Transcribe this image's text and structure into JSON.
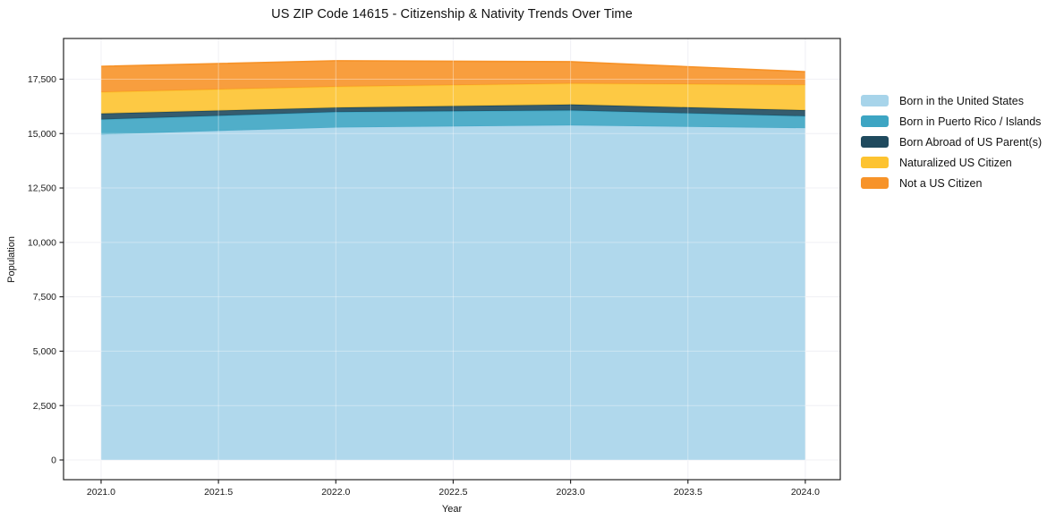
{
  "title": "US ZIP Code 14615 - Citizenship & Nativity Trends Over Time",
  "axes": {
    "xlabel": "Year",
    "ylabel": "Population"
  },
  "chart_data": {
    "type": "area",
    "stacked": true,
    "title": "US ZIP Code 14615 - Citizenship & Nativity Trends Over Time",
    "xlabel": "Year",
    "ylabel": "Population",
    "x": [
      2021,
      2022,
      2023,
      2024
    ],
    "series": [
      {
        "name": "Born in the United States",
        "color": "#a7d4ea",
        "values": [
          14960,
          15280,
          15375,
          15250
        ]
      },
      {
        "name": "Born in Puerto Rico / Islands",
        "color": "#3da5c3",
        "values": [
          690,
          710,
          690,
          550
        ]
      },
      {
        "name": "Born Abroad of US Parent(s)",
        "color": "#1f4a5e",
        "values": [
          270,
          205,
          270,
          275
        ]
      },
      {
        "name": "Naturalized US Citizen",
        "color": "#fdc330",
        "values": [
          985,
          960,
          965,
          1165
        ]
      },
      {
        "name": "Not a US Citizen",
        "color": "#f79329",
        "values": [
          1180,
          1190,
          1000,
          600
        ]
      }
    ],
    "totals_stacked": [
      18085,
      18345,
      18300,
      17840
    ],
    "xlim": [
      2020.84,
      2024.149
    ],
    "ylim": [
      -905,
      19370
    ],
    "x_tick_values": [
      2021.0,
      2021.5,
      2022.0,
      2022.5,
      2023.0,
      2023.5,
      2024.0
    ],
    "x_tick_labels": [
      "2021.0",
      "2021.5",
      "2022.0",
      "2022.5",
      "2023.0",
      "2023.5",
      "2024.0"
    ],
    "y_tick_values": [
      0,
      2500,
      5000,
      7500,
      10000,
      12500,
      15000,
      17500
    ],
    "y_tick_labels": [
      "0",
      "2,500",
      "5,000",
      "7,500",
      "10,000",
      "12,500",
      "15,000",
      "17,500"
    ],
    "grid": true,
    "legend_position": "right-outside",
    "style": {
      "spine_color": "#262626",
      "grid_color": "#e9e9f0",
      "grid_overlay": "rgba(255,255,255,0.38)",
      "tick_text_color": "#1a1a1a",
      "fill_opacity": 0.9
    }
  }
}
